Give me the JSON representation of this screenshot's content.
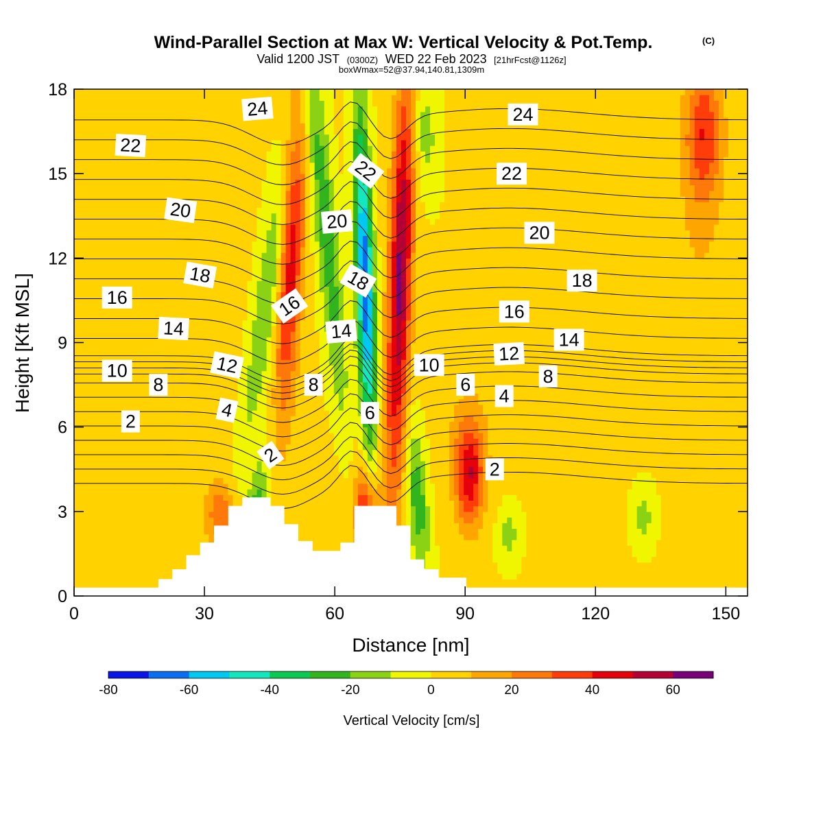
{
  "header": {
    "title": "Wind-Parallel Section at Max W: Vertical Velocity & Pot.Temp.",
    "title_mark": "(C)",
    "valid_prefix": "Valid 1200 JST",
    "valid_utc": "(0300Z)",
    "valid_date": "WED 22 Feb 2023",
    "forecast_info": "[21hrFcst@1126z]",
    "box_info": "boxWmax=52@37.94,140.81,1309m"
  },
  "chart_data": {
    "type": "heatmap",
    "xlabel": "Distance [nm]",
    "ylabel": "Height [Kft MSL]",
    "xlim": [
      0,
      155
    ],
    "ylim": [
      0,
      18
    ],
    "x_ticks": [
      0,
      30,
      60,
      90,
      120,
      150
    ],
    "y_ticks": [
      0,
      3,
      6,
      9,
      12,
      15,
      18
    ],
    "colorbar": {
      "title": "Vertical Velocity [cm/s]",
      "levels": [
        -80,
        -70,
        -60,
        -50,
        -40,
        -30,
        -20,
        -10,
        0,
        10,
        20,
        30,
        40,
        50,
        60,
        70
      ],
      "colors": [
        "#0a14e6",
        "#0a6ef0",
        "#00c8f0",
        "#14e6be",
        "#0ac850",
        "#32b41e",
        "#8cd214",
        "#f0f500",
        "#ffd200",
        "#ffa500",
        "#ff780a",
        "#ff3c0a",
        "#e6000a",
        "#b40032",
        "#780078"
      ],
      "tick_labels": [
        -80,
        -60,
        -40,
        -20,
        0,
        20,
        40,
        60
      ]
    },
    "terrain_kft": [
      {
        "x": 0,
        "h": 0.3
      },
      {
        "x": 19.4,
        "h": 0.6
      },
      {
        "x": 22.6,
        "h": 0.95
      },
      {
        "x": 25.8,
        "h": 1.45
      },
      {
        "x": 29.0,
        "h": 1.9
      },
      {
        "x": 32.2,
        "h": 2.5
      },
      {
        "x": 35.5,
        "h": 3.2
      },
      {
        "x": 38.7,
        "h": 3.5
      },
      {
        "x": 45.2,
        "h": 3.2
      },
      {
        "x": 48.4,
        "h": 2.55
      },
      {
        "x": 51.6,
        "h": 1.95
      },
      {
        "x": 54.9,
        "h": 1.6
      },
      {
        "x": 61.3,
        "h": 1.9
      },
      {
        "x": 64.5,
        "h": 3.2
      },
      {
        "x": 74.2,
        "h": 2.5
      },
      {
        "x": 77.4,
        "h": 1.3
      },
      {
        "x": 80.6,
        "h": 0.95
      },
      {
        "x": 83.9,
        "h": 0.65
      },
      {
        "x": 90.3,
        "h": 0.3
      },
      {
        "x": 155,
        "h": 0.3
      }
    ],
    "theta_contours": {
      "labels": [
        {
          "text": "24",
          "x": 42.2,
          "y": 17.3,
          "angle": -5
        },
        {
          "text": "24",
          "x": 103.3,
          "y": 17.1,
          "angle": 0
        },
        {
          "text": "22",
          "x": 13.0,
          "y": 16.0,
          "angle": 3
        },
        {
          "text": "22",
          "x": 67.1,
          "y": 15.1,
          "angle": 38
        },
        {
          "text": "22",
          "x": 100.7,
          "y": 15.0,
          "angle": 0
        },
        {
          "text": "20",
          "x": 24.5,
          "y": 13.7,
          "angle": 8
        },
        {
          "text": "20",
          "x": 60.5,
          "y": 13.3,
          "angle": -5
        },
        {
          "text": "20",
          "x": 107.1,
          "y": 12.9,
          "angle": 0
        },
        {
          "text": "18",
          "x": 29.0,
          "y": 11.4,
          "angle": 10
        },
        {
          "text": "18",
          "x": 65.4,
          "y": 11.2,
          "angle": 30
        },
        {
          "text": "18",
          "x": 116.9,
          "y": 11.2,
          "angle": 0
        },
        {
          "text": "16",
          "x": 9.9,
          "y": 10.6,
          "angle": 0
        },
        {
          "text": "16",
          "x": 49.6,
          "y": 10.3,
          "angle": -35
        },
        {
          "text": "16",
          "x": 101.3,
          "y": 10.1,
          "angle": 0
        },
        {
          "text": "14",
          "x": 22.9,
          "y": 9.5,
          "angle": 3
        },
        {
          "text": "14",
          "x": 61.5,
          "y": 9.4,
          "angle": -5
        },
        {
          "text": "14",
          "x": 113.9,
          "y": 9.1,
          "angle": 0
        },
        {
          "text": "12",
          "x": 35.2,
          "y": 8.2,
          "angle": 12
        },
        {
          "text": "12",
          "x": 100.1,
          "y": 8.6,
          "angle": -3
        },
        {
          "text": "10",
          "x": 9.9,
          "y": 8.0,
          "angle": 0
        },
        {
          "text": "10",
          "x": 81.7,
          "y": 8.2,
          "angle": 0
        },
        {
          "text": "8",
          "x": 19.4,
          "y": 7.5,
          "angle": 0
        },
        {
          "text": "8",
          "x": 55.1,
          "y": 7.5,
          "angle": 0
        },
        {
          "text": "8",
          "x": 109.1,
          "y": 7.8,
          "angle": 0
        },
        {
          "text": "6",
          "x": 90.1,
          "y": 7.5,
          "angle": 0
        },
        {
          "text": "6",
          "x": 68.1,
          "y": 6.5,
          "angle": 0
        },
        {
          "text": "4",
          "x": 35.2,
          "y": 6.6,
          "angle": 12
        },
        {
          "text": "4",
          "x": 99.0,
          "y": 7.1,
          "angle": 0
        },
        {
          "text": "2",
          "x": 13.0,
          "y": 6.2,
          "angle": 0
        },
        {
          "text": "2",
          "x": 45.2,
          "y": 5.0,
          "angle": -35
        },
        {
          "text": "2",
          "x": 96.8,
          "y": 4.5,
          "angle": 0
        }
      ]
    }
  }
}
